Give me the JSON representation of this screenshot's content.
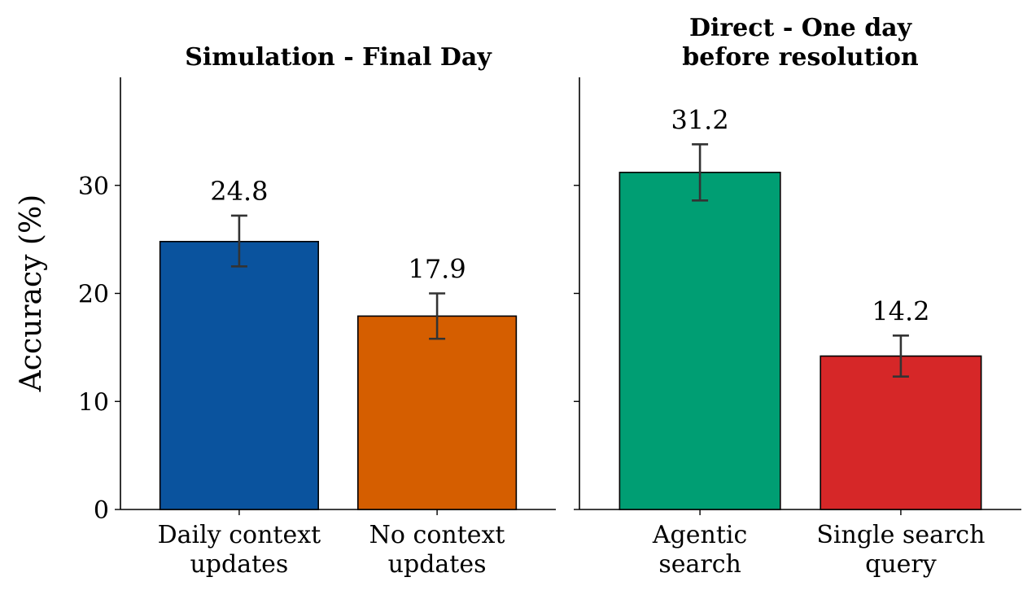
{
  "ylabel": "Accuracy (%)",
  "chart_data": [
    {
      "type": "bar",
      "title": "Simulation - Final Day",
      "categories": [
        "Daily context updates",
        "No context updates"
      ],
      "category_lines": [
        [
          "Daily context",
          "updates"
        ],
        [
          "No context",
          "updates"
        ]
      ],
      "values": [
        24.8,
        17.9
      ],
      "value_labels": [
        "24.8",
        "17.9"
      ],
      "error_low": [
        22.5,
        15.8
      ],
      "error_high": [
        27.2,
        20.0
      ],
      "colors": [
        "#0a539e",
        "#d55e00"
      ],
      "ylabel": "Accuracy (%)",
      "ylim": [
        0,
        40
      ],
      "yticks": [
        0,
        10,
        20,
        30
      ],
      "grid": false
    },
    {
      "type": "bar",
      "title": "Direct - One day before resolution",
      "title_lines": [
        "Direct - One day",
        "before resolution"
      ],
      "categories": [
        "Agentic search",
        "Single search query"
      ],
      "category_lines": [
        [
          "Agentic",
          "search"
        ],
        [
          "Single search",
          "query"
        ]
      ],
      "values": [
        31.2,
        14.2
      ],
      "value_labels": [
        "31.2",
        "14.2"
      ],
      "error_low": [
        28.6,
        12.3
      ],
      "error_high": [
        33.8,
        16.1
      ],
      "colors": [
        "#009e73",
        "#d62728"
      ],
      "ylim": [
        0,
        40
      ],
      "yticks": [
        0,
        10,
        20,
        30
      ],
      "grid": false
    }
  ]
}
